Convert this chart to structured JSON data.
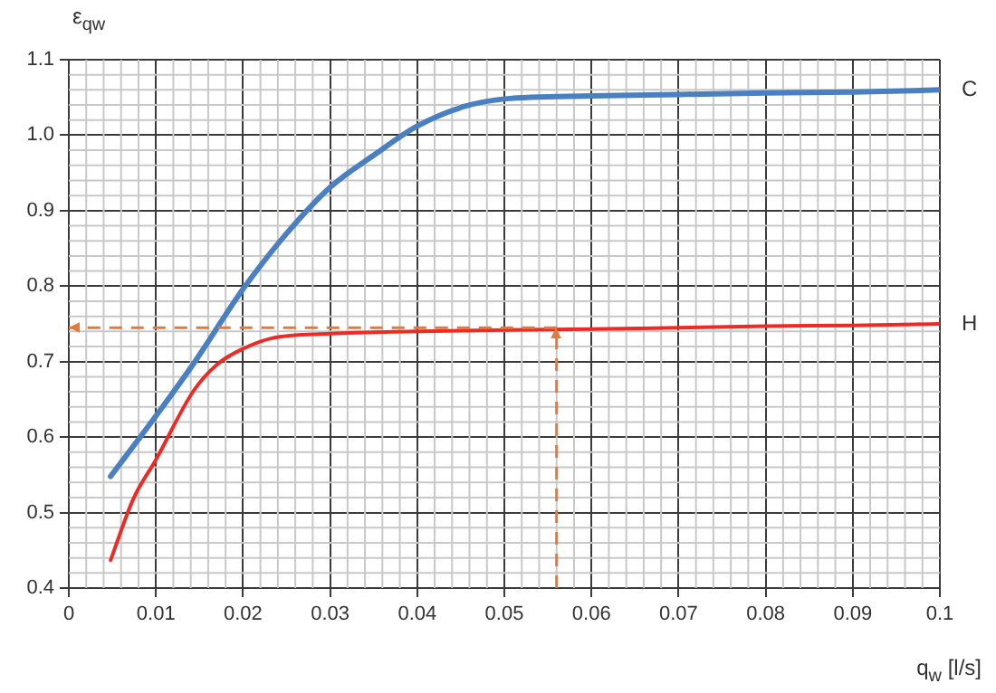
{
  "chart_data": {
    "type": "line",
    "xlabel": "q$_{w}$ [l/s]",
    "ylabel": "ε$_{qw}$",
    "xlim": [
      0,
      0.1
    ],
    "ylim": [
      0.4,
      1.1
    ],
    "xticks": [
      0,
      0.01,
      0.02,
      0.03,
      0.04,
      0.05,
      0.06,
      0.07,
      0.08,
      0.09,
      0.1
    ],
    "yticks": [
      0.4,
      0.5,
      0.6,
      0.7,
      0.8,
      0.9,
      {
        "value": 1,
        "label": "1.0"
      },
      1.1
    ],
    "grid": true,
    "marker": "none",
    "line_style": "solid",
    "series": [
      {
        "name": "C",
        "color": "#4a7fc1",
        "x": [
          0.0048,
          0.01,
          0.0143,
          0.02,
          0.0248,
          0.03,
          0.0352,
          0.04,
          0.0454,
          0.05,
          0.06,
          0.07,
          0.08,
          0.09,
          0.1
        ],
        "values": [
          0.548,
          0.628,
          0.697,
          0.796,
          0.867,
          0.931,
          0.975,
          1.012,
          1.038,
          1.048,
          1.052,
          1.054,
          1.056,
          1.057,
          1.06
        ]
      },
      {
        "name": "H",
        "color": "#ee2a24",
        "x": [
          0.0048,
          0.0074,
          0.01,
          0.0143,
          0.0171,
          0.02,
          0.0233,
          0.03,
          0.04,
          0.05,
          0.06,
          0.07,
          0.08,
          0.09,
          0.1
        ],
        "values": [
          0.437,
          0.518,
          0.57,
          0.661,
          0.697,
          0.717,
          0.731,
          0.737,
          0.74,
          0.742,
          0.743,
          0.745,
          0.747,
          0.748,
          0.75
        ]
      }
    ],
    "ref_lines": [
      {
        "axis": "x",
        "value": 0.056,
        "color": "#e07b39",
        "line_style": "dashed"
      },
      {
        "axis": "y",
        "value": 0.745,
        "color": "#e07b39",
        "line_style": "dashed"
      }
    ]
  }
}
